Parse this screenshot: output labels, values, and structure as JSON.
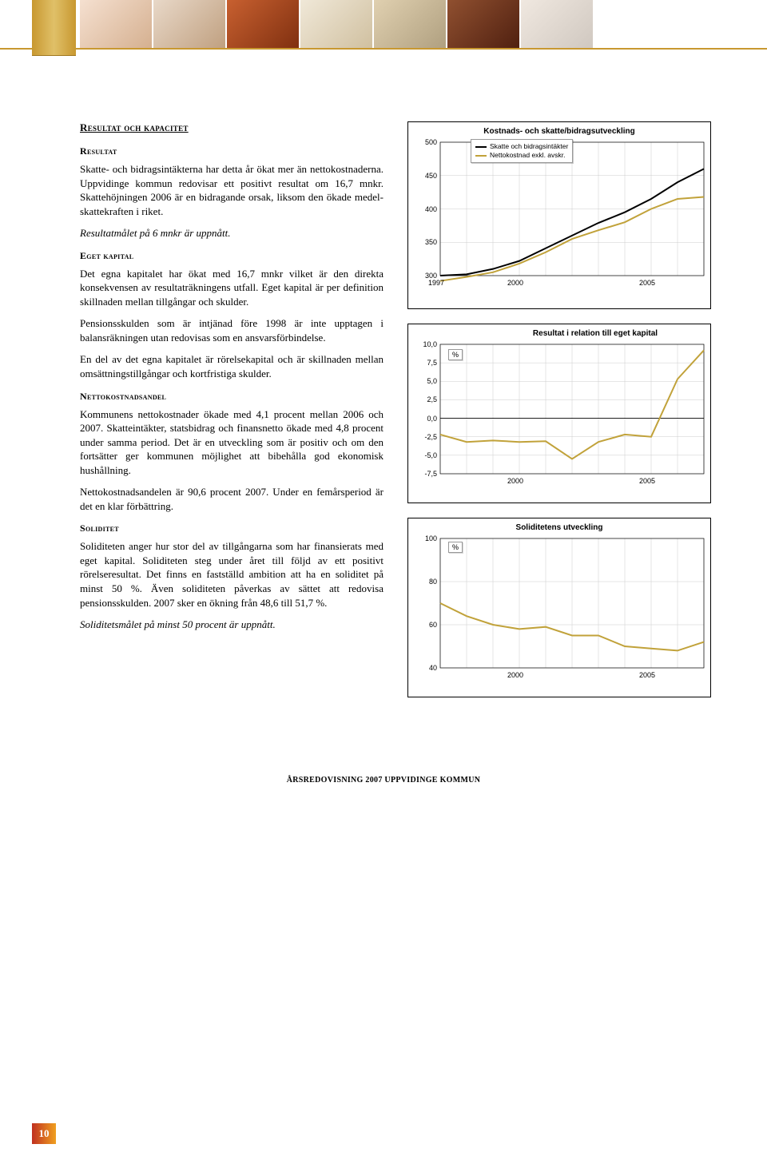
{
  "section_heading": "Resultat och kapacitet",
  "resultat": {
    "h": "Resultat",
    "p1": "Skatte- och bidragsintäkterna har detta år ökat mer än nettokostnaderna. Uppvidinge kommun redovisar ett positivt resultat om 16,7 mnkr. Skattehöjningen 2006 är en bidragande orsak, liksom den ökade medel­skattekraften i riket.",
    "p2_italic": "Resultatmålet på 6 mnkr är uppnått."
  },
  "eget": {
    "h": "Eget kapital",
    "p1": "Det egna kapitalet har ökat med 16,7 mnkr vilket är den direkta konsekvensen av resultaträkningens utfall. Eget kapital är per definition skillnaden mellan till­gångar och skulder.",
    "p2": "Pensionsskulden som är intjänad före 1998 är inte upptagen i balansräkningen utan redovisas som en ansvarsförbindelse.",
    "p3": "En del av det egna kapitalet är rörelsekapital och är skillnaden mellan omsättningstillgångar och kort­fristiga skulder."
  },
  "netto": {
    "h": "Nettokostnadsandel",
    "p1": "Kommunens nettokostnader ökade med 4,1 procent mellan 2006 och 2007. Skatteintäkter, statsbidrag och finansnetto ökade med 4,8 procent under samma period. Det är en utveckling som är positiv och om den fortsätter ger kommunen möjlighet att bibehålla god ekonomisk hushållning.",
    "p2": "Nettokostnadsandelen är 90,6 procent 2007. Under en femårsperiod är det en klar förbättring."
  },
  "soliditet": {
    "h": "Soliditet",
    "p1": "Soliditeten anger hur stor del av tillgångarna som har finansierats med eget kapital. Soliditeten steg under året till följd av ett positivt rörelseresultat. Det finns en fastställd ambition att ha en soliditet på minst 50 %. Även soliditeten påverkas av sättet att redovisa pensionsskulden. 2007 sker en ökning från 48,6 till 51,7 %.",
    "p2_italic": "Soliditetsmålet på minst 50 procent är uppnått."
  },
  "chart1": {
    "type": "line",
    "title": "Kostnads- och skatte/bidragsutveckling",
    "legend": [
      {
        "label": "Skatte och  bidragsintäkter",
        "color": "#000000"
      },
      {
        "label": "Nettokostnad exkl. avskr.",
        "color": "#c1a23a"
      }
    ],
    "yticks": [
      "300",
      "350",
      "400",
      "450",
      "500"
    ],
    "xticks": [
      "1997",
      "2000",
      "2005"
    ],
    "ylim": [
      300,
      500
    ],
    "series": [
      {
        "color": "#000000",
        "width": 2,
        "y": [
          300,
          302,
          310,
          322,
          341,
          360,
          379,
          395,
          415,
          440,
          460
        ]
      },
      {
        "color": "#c1a23a",
        "width": 2,
        "y": [
          292,
          298,
          305,
          318,
          335,
          355,
          368,
          380,
          400,
          415,
          418
        ]
      }
    ],
    "grid_color": "#cccccc",
    "bg": "#ffffff"
  },
  "chart2": {
    "type": "line",
    "title": "Resultat i relation till eget kapital",
    "pct_label": "%",
    "yticks": [
      "-7,5",
      "-5,0",
      "-2,5",
      "0,0",
      "2,5",
      "5,0",
      "7,5",
      "10,0"
    ],
    "xticks": [
      "2000",
      "2005"
    ],
    "ylim": [
      -7.5,
      10
    ],
    "series": [
      {
        "color": "#c1a23a",
        "width": 2,
        "y": [
          -2.2,
          -3.2,
          -3.0,
          -3.2,
          -3.1,
          -5.5,
          -3.2,
          -2.2,
          -2.5,
          5.3,
          9.2
        ]
      }
    ],
    "grid_color": "#cccccc",
    "axis_color": "#000",
    "bg": "#ffffff"
  },
  "chart3": {
    "type": "line",
    "title": "Soliditetens utveckling",
    "pct_label": "%",
    "yticks": [
      "40",
      "60",
      "80",
      "100"
    ],
    "xticks": [
      "2000",
      "2005"
    ],
    "ylim": [
      40,
      100
    ],
    "series": [
      {
        "color": "#c1a23a",
        "width": 2,
        "y": [
          70,
          64,
          60,
          58,
          59,
          55,
          55,
          50,
          49,
          48,
          52
        ]
      }
    ],
    "grid_color": "#cccccc",
    "bg": "#ffffff"
  },
  "footer": "ÅRSREDOVISNING 2007 UPPVIDINGE KOMMUN",
  "page_num": "10"
}
